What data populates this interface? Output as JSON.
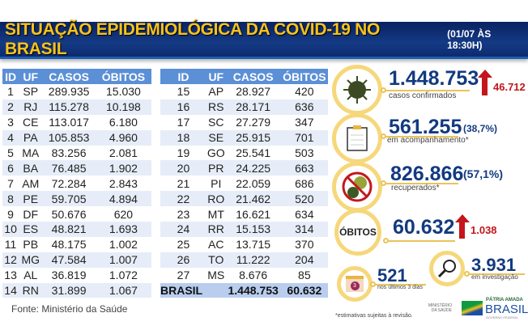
{
  "title": "SITUAÇÃO EPIDEMIOLÓGICA DA COVID-19 NO BRASIL",
  "datetime": "(01/07 ÀS 18:30H)",
  "columns": [
    "ID",
    "UF",
    "CASOS",
    "ÓBITOS"
  ],
  "rows_left": [
    [
      "1",
      "SP",
      "289.935",
      "15.030"
    ],
    [
      "2",
      "RJ",
      "115.278",
      "10.198"
    ],
    [
      "3",
      "CE",
      "113.017",
      "6.180"
    ],
    [
      "4",
      "PA",
      "105.853",
      "4.960"
    ],
    [
      "5",
      "MA",
      "83.256",
      "2.081"
    ],
    [
      "6",
      "BA",
      "76.485",
      "1.902"
    ],
    [
      "7",
      "AM",
      "72.284",
      "2.843"
    ],
    [
      "8",
      "PE",
      "59.705",
      "4.894"
    ],
    [
      "9",
      "DF",
      "50.676",
      "620"
    ],
    [
      "10",
      "ES",
      "48.821",
      "1.693"
    ],
    [
      "11",
      "PB",
      "48.175",
      "1.002"
    ],
    [
      "12",
      "MG",
      "47.584",
      "1.007"
    ],
    [
      "13",
      "AL",
      "36.819",
      "1.072"
    ],
    [
      "14",
      "RN",
      "31.899",
      "1.067"
    ]
  ],
  "rows_right": [
    [
      "15",
      "AP",
      "28.927",
      "420"
    ],
    [
      "16",
      "RS",
      "28.171",
      "636"
    ],
    [
      "17",
      "SC",
      "27.279",
      "347"
    ],
    [
      "18",
      "SE",
      "25.915",
      "701"
    ],
    [
      "19",
      "GO",
      "25.541",
      "503"
    ],
    [
      "20",
      "PR",
      "24.225",
      "663"
    ],
    [
      "21",
      "PI",
      "22.059",
      "686"
    ],
    [
      "22",
      "RO",
      "21.462",
      "520"
    ],
    [
      "23",
      "MT",
      "16.621",
      "634"
    ],
    [
      "24",
      "RR",
      "15.153",
      "314"
    ],
    [
      "25",
      "AC",
      "13.715",
      "370"
    ],
    [
      "26",
      "TO",
      "11.222",
      "204"
    ],
    [
      "27",
      "MS",
      "8.676",
      "85"
    ]
  ],
  "total": {
    "label": "BRASIL",
    "casos": "1.448.753",
    "obitos": "60.632"
  },
  "source": "Fonte: Ministério da Saúde",
  "stats": {
    "confirmed": {
      "value": "1.448.753",
      "delta": "46.712",
      "label": "casos confirmados"
    },
    "monitoring": {
      "value": "561.255",
      "pct": "(38,7%)",
      "label": "em acompanhamento*"
    },
    "recovered": {
      "value": "826.866",
      "pct": "(57,1%)",
      "label": "recuperados*"
    },
    "deaths": {
      "badge": "ÓBITOS",
      "value": "60.632",
      "delta": "1.038"
    },
    "last3": {
      "value": "521",
      "label": "nos últimos 3 dias",
      "cal": "3"
    },
    "investigation": {
      "value": "3.931",
      "label": "em investigação"
    }
  },
  "footnote": "*estimativas sujeitas à revisão.",
  "logos": {
    "ministry": "MINISTÉRIO DA SAÚDE",
    "brand_top": "PÁTRIA AMADA",
    "brand": "BRASIL",
    "brand_sub": "GOVERNO FEDERAL"
  },
  "colors": {
    "navy": "#0d2b6e",
    "title": "#f6c21c",
    "header": "#5b8fd6",
    "accent_red": "#c4161c"
  }
}
